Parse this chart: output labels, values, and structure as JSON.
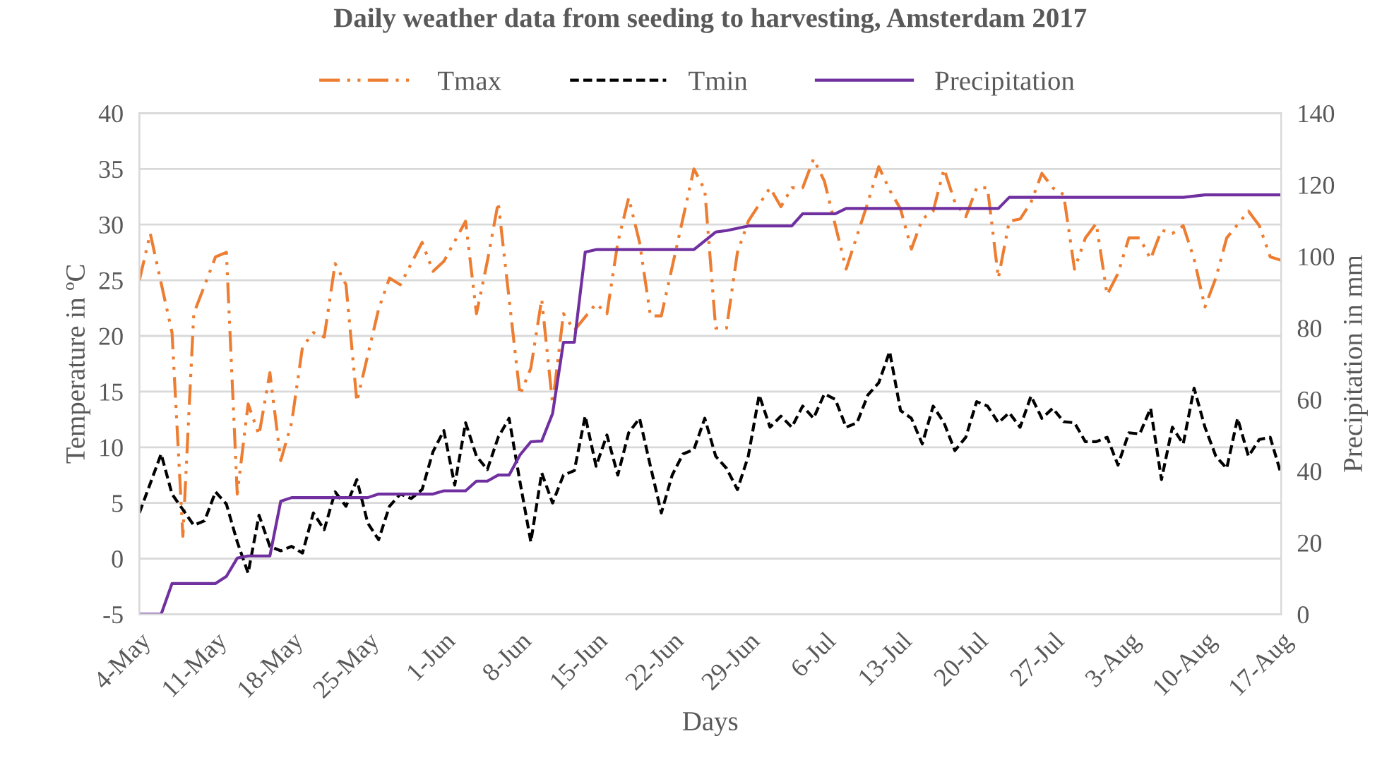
{
  "chart_data": {
    "type": "line",
    "title": "Daily weather data from seeding to harvesting, Amsterdam 2017",
    "xlabel": "Days",
    "ylabel": "Temperature in ºC",
    "y2label": "Precipitation in mm",
    "xlim": [
      "2017-05-04",
      "2017-08-17"
    ],
    "xticks": [
      {
        "value": "2017-05-04",
        "label": "4-May"
      },
      {
        "value": "2017-05-11",
        "label": "11-May"
      },
      {
        "value": "2017-05-18",
        "label": "18-May"
      },
      {
        "value": "2017-05-25",
        "label": "25-May"
      },
      {
        "value": "2017-06-01",
        "label": "1-Jun"
      },
      {
        "value": "2017-06-08",
        "label": "8-Jun"
      },
      {
        "value": "2017-06-15",
        "label": "15-Jun"
      },
      {
        "value": "2017-06-22",
        "label": "22-Jun"
      },
      {
        "value": "2017-06-29",
        "label": "29-Jun"
      },
      {
        "value": "2017-07-06",
        "label": "6-Jul"
      },
      {
        "value": "2017-07-13",
        "label": "13-Jul"
      },
      {
        "value": "2017-07-20",
        "label": "20-Jul"
      },
      {
        "value": "2017-07-27",
        "label": "27-Jul"
      },
      {
        "value": "2017-08-03",
        "label": "3-Aug"
      },
      {
        "value": "2017-08-10",
        "label": "10-Aug"
      },
      {
        "value": "2017-08-17",
        "label": "17-Aug"
      }
    ],
    "ylim": [
      -5,
      40
    ],
    "yticks": [
      -5,
      0,
      5,
      10,
      15,
      20,
      25,
      30,
      35,
      40
    ],
    "y2lim": [
      0,
      140
    ],
    "y2ticks": [
      0,
      20,
      40,
      60,
      80,
      100,
      120,
      140
    ],
    "grid": "y",
    "legend": "top",
    "series": [
      {
        "name": "Tmax",
        "color": "#ed7d31",
        "line_style": "dashdotdot",
        "x": [
          "2017-05-04",
          "2017-05-05",
          "2017-05-07",
          "2017-05-08",
          "2017-05-09",
          "2017-05-11",
          "2017-05-12",
          "2017-05-13",
          "2017-05-14",
          "2017-05-15",
          "2017-05-16",
          "2017-05-17",
          "2017-05-18",
          "2017-05-19",
          "2017-05-20",
          "2017-05-21",
          "2017-05-22",
          "2017-05-23",
          "2017-05-24",
          "2017-05-26",
          "2017-05-27",
          "2017-05-28",
          "2017-05-30",
          "2017-05-31",
          "2017-06-01",
          "2017-06-03",
          "2017-06-04",
          "2017-06-05",
          "2017-06-06",
          "2017-06-08",
          "2017-06-09",
          "2017-06-10",
          "2017-06-11",
          "2017-06-12",
          "2017-06-13",
          "2017-06-15",
          "2017-06-16",
          "2017-06-17",
          "2017-06-18",
          "2017-06-19",
          "2017-06-20",
          "2017-06-21",
          "2017-06-24",
          "2017-06-25",
          "2017-06-26",
          "2017-06-27",
          "2017-06-28",
          "2017-06-29",
          "2017-07-01",
          "2017-07-02",
          "2017-07-03",
          "2017-07-04",
          "2017-07-05",
          "2017-07-06",
          "2017-07-08",
          "2017-07-10",
          "2017-07-11",
          "2017-07-12",
          "2017-07-13",
          "2017-07-14",
          "2017-07-15",
          "2017-07-16",
          "2017-07-17",
          "2017-07-18",
          "2017-07-19",
          "2017-07-20",
          "2017-07-21",
          "2017-07-22",
          "2017-07-23",
          "2017-07-24",
          "2017-07-25",
          "2017-07-26",
          "2017-07-27",
          "2017-07-28",
          "2017-07-29",
          "2017-07-30",
          "2017-07-31",
          "2017-08-01",
          "2017-08-02",
          "2017-08-03",
          "2017-08-04",
          "2017-08-05",
          "2017-08-06",
          "2017-08-07",
          "2017-08-08",
          "2017-08-09",
          "2017-08-10",
          "2017-08-11",
          "2017-08-12",
          "2017-08-14",
          "2017-08-15",
          "2017-08-16",
          "2017-08-17"
        ],
        "values": [
          25.0,
          29.2,
          20.3,
          2.0,
          22.0,
          27.1,
          27.5,
          5.8,
          13.9,
          11.1,
          16.7,
          8.8,
          12.2,
          19.0,
          20.3,
          19.9,
          26.5,
          24.6,
          14.1,
          22.4,
          25.2,
          24.6,
          28.4,
          25.8,
          26.7,
          30.3,
          22.0,
          26.7,
          32.0,
          14.7,
          17.1,
          23.3,
          13.9,
          22.0,
          20.5,
          22.9,
          22.0,
          28.4,
          32.4,
          28.4,
          21.8,
          21.8,
          35.0,
          33.1,
          20.7,
          20.7,
          27.5,
          30.3,
          33.3,
          31.6,
          33.3,
          33.3,
          35.9,
          33.9,
          26.0,
          32.0,
          35.2,
          33.1,
          31.4,
          27.8,
          30.5,
          31.2,
          35.0,
          32.0,
          30.7,
          33.3,
          33.3,
          25.2,
          30.3,
          30.5,
          32.0,
          34.6,
          33.3,
          32.7,
          26.0,
          28.8,
          30.1,
          23.7,
          25.6,
          28.8,
          28.8,
          26.9,
          29.5,
          29.2,
          29.9,
          26.9,
          22.6,
          25.2,
          28.8,
          31.2,
          29.9,
          27.1,
          26.8
        ]
      },
      {
        "name": "Tmin",
        "color": "#000000",
        "line_style": "dashed",
        "x": [
          "2017-05-04",
          "2017-05-06",
          "2017-05-07",
          "2017-05-09",
          "2017-05-10",
          "2017-05-11",
          "2017-05-12",
          "2017-05-13",
          "2017-05-14",
          "2017-05-15",
          "2017-05-16",
          "2017-05-17",
          "2017-05-18",
          "2017-05-19",
          "2017-05-20",
          "2017-05-21",
          "2017-05-22",
          "2017-05-23",
          "2017-05-24",
          "2017-05-25",
          "2017-05-26",
          "2017-05-27",
          "2017-05-28",
          "2017-05-29",
          "2017-05-30",
          "2017-05-31",
          "2017-06-01",
          "2017-06-02",
          "2017-06-03",
          "2017-06-04",
          "2017-06-05",
          "2017-06-06",
          "2017-06-07",
          "2017-06-08",
          "2017-06-09",
          "2017-06-10",
          "2017-06-11",
          "2017-06-12",
          "2017-06-13",
          "2017-06-14",
          "2017-06-15",
          "2017-06-16",
          "2017-06-17",
          "2017-06-18",
          "2017-06-19",
          "2017-06-20",
          "2017-06-21",
          "2017-06-22",
          "2017-06-23",
          "2017-06-24",
          "2017-06-25",
          "2017-06-26",
          "2017-06-27",
          "2017-06-28",
          "2017-06-29",
          "2017-06-30",
          "2017-07-01",
          "2017-07-02",
          "2017-07-03",
          "2017-07-04",
          "2017-07-05",
          "2017-07-06",
          "2017-07-07",
          "2017-07-08",
          "2017-07-09",
          "2017-07-10",
          "2017-07-11",
          "2017-07-12",
          "2017-07-13",
          "2017-07-14",
          "2017-07-15",
          "2017-07-16",
          "2017-07-17",
          "2017-07-18",
          "2017-07-19",
          "2017-07-20",
          "2017-07-21",
          "2017-07-22",
          "2017-07-23",
          "2017-07-24",
          "2017-07-25",
          "2017-07-26",
          "2017-07-27",
          "2017-07-28",
          "2017-07-29",
          "2017-07-30",
          "2017-07-31",
          "2017-08-01",
          "2017-08-02",
          "2017-08-03",
          "2017-08-04",
          "2017-08-05",
          "2017-08-06",
          "2017-08-07",
          "2017-08-08",
          "2017-08-09",
          "2017-08-10",
          "2017-08-11",
          "2017-08-12",
          "2017-08-13",
          "2017-08-14",
          "2017-08-15",
          "2017-08-16",
          "2017-08-17"
        ],
        "values": [
          4.1,
          9.4,
          5.8,
          3.0,
          3.4,
          6.0,
          4.9,
          1.5,
          -1.3,
          3.9,
          1.1,
          0.7,
          1.1,
          0.5,
          4.1,
          2.6,
          6.0,
          4.7,
          7.1,
          3.2,
          1.7,
          4.7,
          5.8,
          5.4,
          6.2,
          9.6,
          11.5,
          6.6,
          12.2,
          9.2,
          8.0,
          10.9,
          12.6,
          6.9,
          1.5,
          7.7,
          5.0,
          7.5,
          7.9,
          12.8,
          8.3,
          11.1,
          7.5,
          11.3,
          12.6,
          8.3,
          4.1,
          7.5,
          9.4,
          9.8,
          12.6,
          9.2,
          8.1,
          6.2,
          9.2,
          14.7,
          11.8,
          12.8,
          11.8,
          13.7,
          12.6,
          14.8,
          14.3,
          11.8,
          12.2,
          14.7,
          15.8,
          18.6,
          13.3,
          12.6,
          10.3,
          13.7,
          12.2,
          9.7,
          10.9,
          14.1,
          13.7,
          12.2,
          13.1,
          11.8,
          14.6,
          12.6,
          13.5,
          12.3,
          12.2,
          10.5,
          10.5,
          10.9,
          8.4,
          11.3,
          11.2,
          13.5,
          7.1,
          11.8,
          10.3,
          15.3,
          11.8,
          9.2,
          8.1,
          12.6,
          9.2,
          10.7,
          10.9,
          7.6
        ]
      },
      {
        "name": "Precipitation",
        "color": "#7030a0",
        "line_style": "solid",
        "axis": "y2",
        "x": [
          "2017-05-04",
          "2017-05-06",
          "2017-05-07",
          "2017-05-11",
          "2017-05-12",
          "2017-05-13",
          "2017-05-14",
          "2017-05-16",
          "2017-05-17",
          "2017-05-18",
          "2017-05-25",
          "2017-05-26",
          "2017-05-31",
          "2017-06-01",
          "2017-06-03",
          "2017-06-04",
          "2017-06-05",
          "2017-06-06",
          "2017-06-07",
          "2017-06-08",
          "2017-06-09",
          "2017-06-10",
          "2017-06-11",
          "2017-06-12",
          "2017-06-13",
          "2017-06-14",
          "2017-06-15",
          "2017-06-24",
          "2017-06-26",
          "2017-06-27",
          "2017-06-29",
          "2017-07-03",
          "2017-07-04",
          "2017-07-07",
          "2017-07-08",
          "2017-07-22",
          "2017-07-23",
          "2017-08-08",
          "2017-08-10",
          "2017-08-17"
        ],
        "values": [
          0,
          0,
          8.6,
          8.6,
          10.6,
          15.7,
          16.3,
          16.3,
          31.6,
          32.6,
          32.6,
          33.6,
          33.6,
          34.5,
          34.5,
          37.2,
          37.2,
          38.9,
          38.9,
          44.5,
          48.2,
          48.4,
          56.1,
          76.0,
          76.0,
          101.2,
          101.9,
          101.9,
          106.8,
          107.2,
          108.5,
          108.5,
          111.9,
          111.9,
          113.4,
          113.4,
          116.5,
          116.5,
          117.2,
          117.2
        ]
      }
    ]
  }
}
